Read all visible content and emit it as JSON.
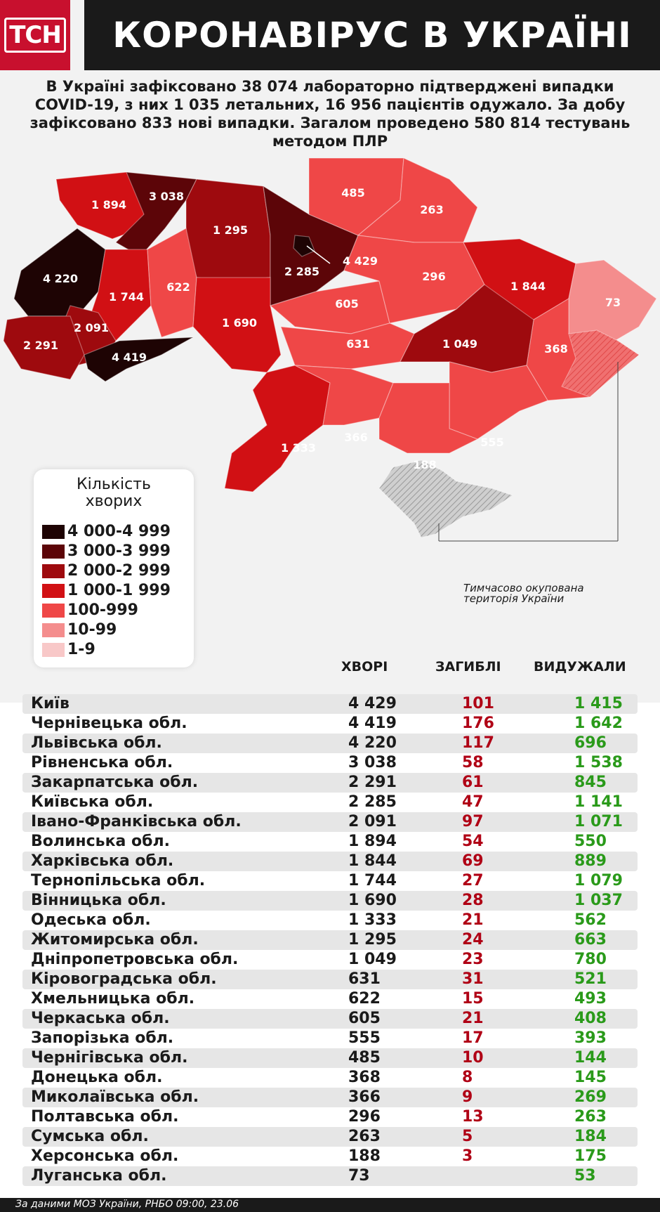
{
  "header": {
    "logo": "ТСН",
    "title": "КОРОНАВІРУС В УКРАЇНІ"
  },
  "intro": "В Україні зафіксовано 38 074 лабораторно підтверджені випадки COVID-19, з них 1 035 летальних, 16 956 пацієнтів одужало. За добу зафіксовано 833 нові випадки. Загалом проведено 580 814 тестувань методом ПЛР",
  "colors": {
    "4000-4999": "#1e0404",
    "3000-3999": "#5c0508",
    "2000-2999": "#9e0a0e",
    "1000-1999": "#d11014",
    "100-999": "#ef4747",
    "10-99": "#f48d8d",
    "1-9": "#f8c8c8",
    "occupied": "#bdbdbd",
    "recovered": "#2a9a1a",
    "deaths": "#b00015"
  },
  "map": {
    "labels": {
      "volyn": "1 894",
      "rivne": "3 038",
      "zhytomyr": "1 295",
      "kyivobl": "2 285",
      "kyiv": "4 429",
      "chernihiv": "485",
      "sumy": "263",
      "lviv": "4 220",
      "ternopil": "1 744",
      "khmelnytskyi": "622",
      "ivanofr": "2 091",
      "zakarpattia": "2 291",
      "chernivtsi": "4 419",
      "vinnytsia": "1 690",
      "cherkasy": "605",
      "poltava": "296",
      "kharkiv": "1 844",
      "luhansk": "73",
      "kirovohrad": "631",
      "dnipro": "1 049",
      "donetsk": "368",
      "odesa": "1 333",
      "mykolaiv": "366",
      "zaporizhzhia": "555",
      "kherson": "188"
    },
    "occupied_note_line1": "Тимчасово окупована",
    "occupied_note_line2": "територія України"
  },
  "legend": {
    "title_line1": "Кількість",
    "title_line2": "хворих",
    "items": [
      {
        "label": "4 000-4 999",
        "color": "#1e0404"
      },
      {
        "label": "3 000-3 999",
        "color": "#5c0508"
      },
      {
        "label": "2 000-2 999",
        "color": "#9e0a0e"
      },
      {
        "label": "1 000-1 999",
        "color": "#d11014"
      },
      {
        "label": "100-999",
        "color": "#ef4747"
      },
      {
        "label": "10-99",
        "color": "#f48d8d"
      },
      {
        "label": "1-9",
        "color": "#f8c8c8"
      }
    ]
  },
  "table": {
    "headers": {
      "sick": "ХВОРІ",
      "deaths": "ЗАГИБЛІ",
      "recovered": "ВИДУЖАЛИ"
    },
    "rows": [
      {
        "name": "Київ",
        "sick": "4 429",
        "deaths": "101",
        "recovered": "1 415"
      },
      {
        "name": "Чернівецька обл.",
        "sick": "4 419",
        "deaths": "176",
        "recovered": "1 642"
      },
      {
        "name": "Львівська обл.",
        "sick": "4 220",
        "deaths": "117",
        "recovered": "696"
      },
      {
        "name": "Рівненська обл.",
        "sick": "3 038",
        "deaths": "58",
        "recovered": "1 538"
      },
      {
        "name": "Закарпатська обл.",
        "sick": "2 291",
        "deaths": "61",
        "recovered": "845"
      },
      {
        "name": "Київська обл.",
        "sick": "2 285",
        "deaths": "47",
        "recovered": "1 141"
      },
      {
        "name": "Івано-Франківська обл.",
        "sick": "2 091",
        "deaths": "97",
        "recovered": "1 071"
      },
      {
        "name": "Волинська обл.",
        "sick": "1 894",
        "deaths": "54",
        "recovered": "550"
      },
      {
        "name": "Харківська обл.",
        "sick": "1 844",
        "deaths": "69",
        "recovered": "889"
      },
      {
        "name": "Тернопільська обл.",
        "sick": "1 744",
        "deaths": "27",
        "recovered": "1 079"
      },
      {
        "name": "Вінницька обл.",
        "sick": "1 690",
        "deaths": "28",
        "recovered": "1 037"
      },
      {
        "name": "Одеська обл.",
        "sick": "1 333",
        "deaths": "21",
        "recovered": "562"
      },
      {
        "name": "Житомирська обл.",
        "sick": "1 295",
        "deaths": "24",
        "recovered": "663"
      },
      {
        "name": "Дніпропетровська обл.",
        "sick": "1 049",
        "deaths": "23",
        "recovered": "780"
      },
      {
        "name": "Кіровоградська обл.",
        "sick": "631",
        "deaths": "31",
        "recovered": "521"
      },
      {
        "name": "Хмельницька обл.",
        "sick": "622",
        "deaths": "15",
        "recovered": "493"
      },
      {
        "name": "Черкаська обл.",
        "sick": "605",
        "deaths": "21",
        "recovered": "408"
      },
      {
        "name": "Запорізька обл.",
        "sick": "555",
        "deaths": "17",
        "recovered": "393"
      },
      {
        "name": "Чернігівська обл.",
        "sick": "485",
        "deaths": "10",
        "recovered": "144"
      },
      {
        "name": "Донецька обл.",
        "sick": "368",
        "deaths": "8",
        "recovered": "145"
      },
      {
        "name": "Миколаївська обл.",
        "sick": "366",
        "deaths": "9",
        "recovered": "269"
      },
      {
        "name": "Полтавська обл.",
        "sick": "296",
        "deaths": "13",
        "recovered": "263"
      },
      {
        "name": "Сумська обл.",
        "sick": "263",
        "deaths": "5",
        "recovered": "184"
      },
      {
        "name": "Херсонська обл.",
        "sick": "188",
        "deaths": "3",
        "recovered": "175"
      },
      {
        "name": "Луганська обл.",
        "sick": "73",
        "deaths": "",
        "recovered": "53"
      }
    ]
  },
  "footer": "За даними МОЗ України, РНБО  09:00, 23.06"
}
